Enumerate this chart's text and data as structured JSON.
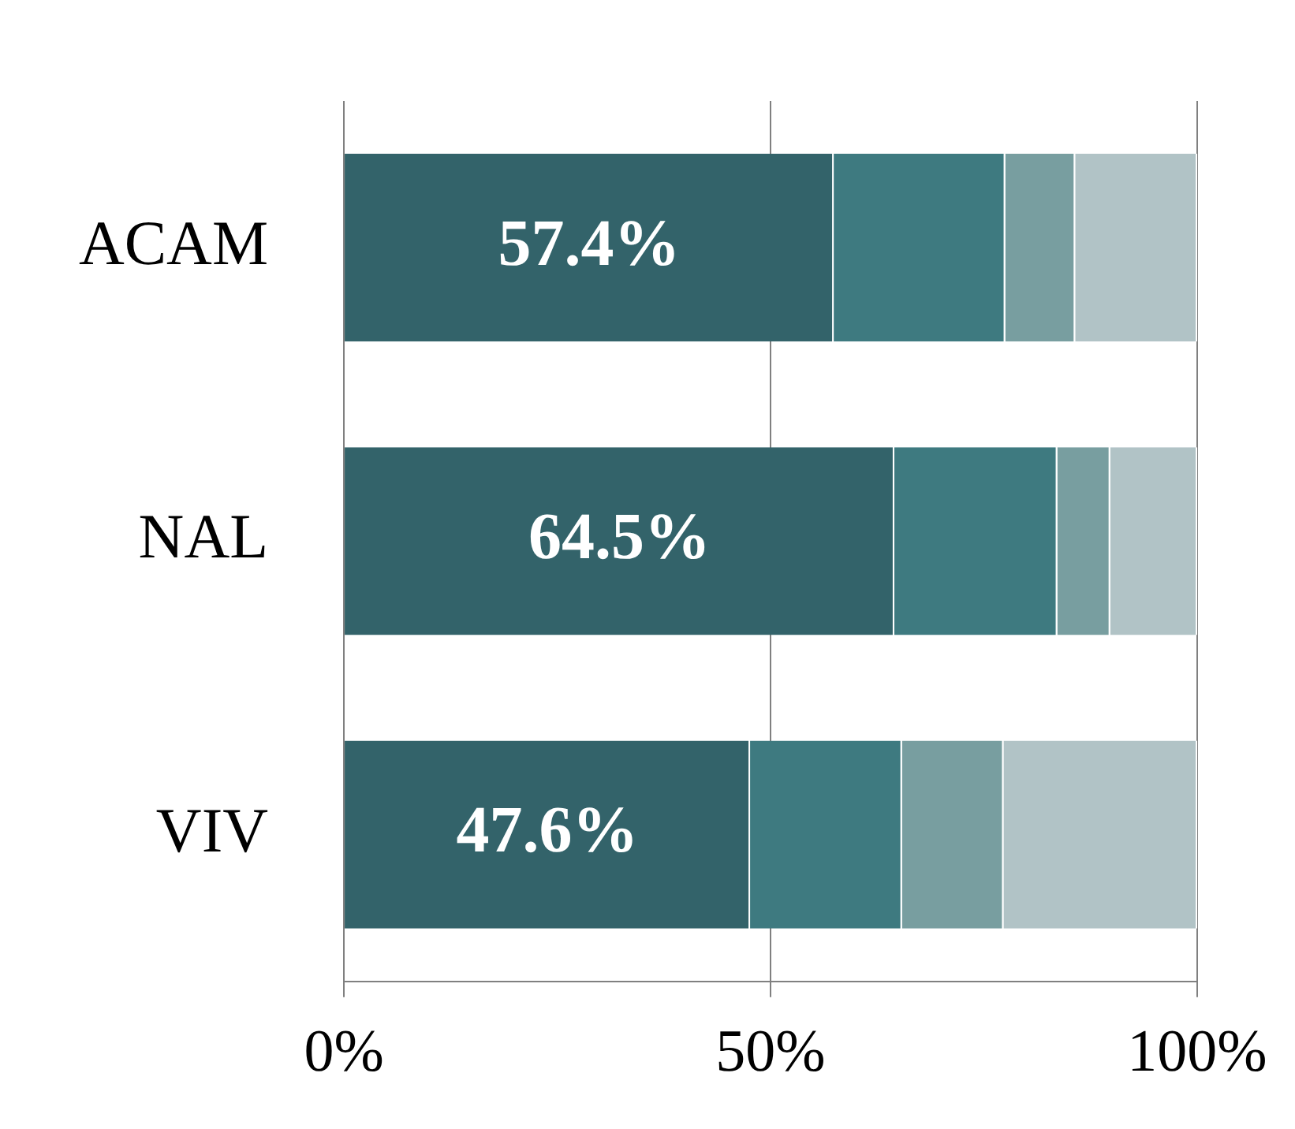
{
  "chart_data": {
    "type": "bar",
    "orientation": "horizontal",
    "stacked": true,
    "categories": [
      "ACAM",
      "NAL",
      "VIV"
    ],
    "series": [
      {
        "color": "#33636a",
        "values": [
          57.4,
          64.5,
          47.6
        ],
        "value_labels": [
          "57.4%",
          "64.5%",
          "47.6%"
        ]
      },
      {
        "color": "#3e7a80",
        "values": [
          20.1,
          19.1,
          17.8
        ]
      },
      {
        "color": "#789ea0",
        "values": [
          8.2,
          6.2,
          11.9
        ]
      },
      {
        "color": "#b1c3c6",
        "values": [
          14.3,
          10.2,
          22.7
        ]
      }
    ],
    "xlim": [
      0,
      100
    ],
    "xticks": [
      {
        "value": 0,
        "label": "0%"
      },
      {
        "value": 50,
        "label": "50%"
      },
      {
        "value": 100,
        "label": "100%"
      }
    ],
    "grid": "x",
    "legend": false
  }
}
